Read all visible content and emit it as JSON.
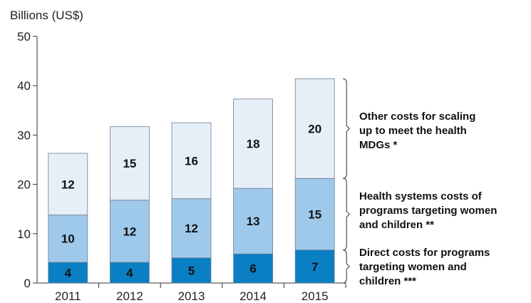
{
  "chart_data": {
    "type": "bar",
    "stacked": true,
    "ylabel": "Billions (US$)",
    "ylim": [
      0,
      50
    ],
    "yticks": [
      0,
      10,
      20,
      30,
      40,
      50
    ],
    "categories": [
      "2011",
      "2012",
      "2013",
      "2014",
      "2015"
    ],
    "series": [
      {
        "name": "Direct costs for programs targeting women and children ***",
        "values": [
          4,
          4,
          5,
          6,
          7
        ],
        "color": "#0a7fc4"
      },
      {
        "name": "Health systems costs of programs targeting women and children **",
        "values": [
          10,
          12,
          12,
          13,
          15
        ],
        "color": "#9fc9ea"
      },
      {
        "name": "Other costs for scaling up to meet the health MDGs *",
        "values": [
          12,
          15,
          16,
          18,
          20
        ],
        "color": "#e6eef8"
      }
    ],
    "bar_heights": [
      26.3,
      31.7,
      32.5,
      37.3,
      41.4
    ],
    "segment_tops": [
      [
        4.2,
        13.8
      ],
      [
        4.2,
        16.8
      ],
      [
        5.1,
        17.1
      ],
      [
        5.9,
        19.2
      ],
      [
        6.7,
        21.2
      ]
    ],
    "legend_placement": "right",
    "grid": false
  }
}
